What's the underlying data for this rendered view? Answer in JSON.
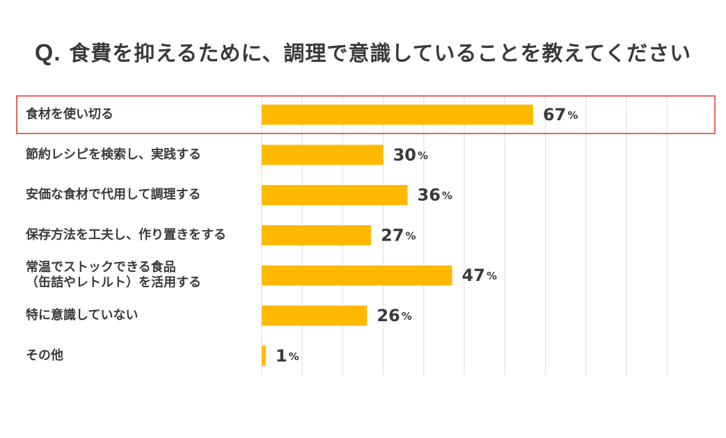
{
  "title": {
    "prefix": "Q.",
    "text": "食費を抑えるために、調理で意識していることを教えてください"
  },
  "colors": {
    "bar": "#FFB900",
    "highlight_border": "#E8645A",
    "grid": "#dcdcdc",
    "text": "#3a3a3a"
  },
  "chart_data": {
    "type": "bar",
    "orientation": "horizontal",
    "title": "Q. 食費を抑えるために、調理で意識していることを教えてください",
    "categories": [
      [
        "食材を使い切る"
      ],
      [
        "節約レシピを検索し、実践する"
      ],
      [
        "安価な食材で代用して調理する"
      ],
      [
        "保存方法を工夫し、作り置きをする"
      ],
      [
        "常温でストックできる食品",
        "（缶詰やレトルト）を活用する"
      ],
      [
        "特に意識していない"
      ],
      [
        "その他"
      ]
    ],
    "values": [
      67,
      30,
      36,
      27,
      47,
      26,
      1
    ],
    "value_unit": "%",
    "xlim": [
      0,
      100
    ],
    "grid": true,
    "highlighted_category_index": 0
  }
}
